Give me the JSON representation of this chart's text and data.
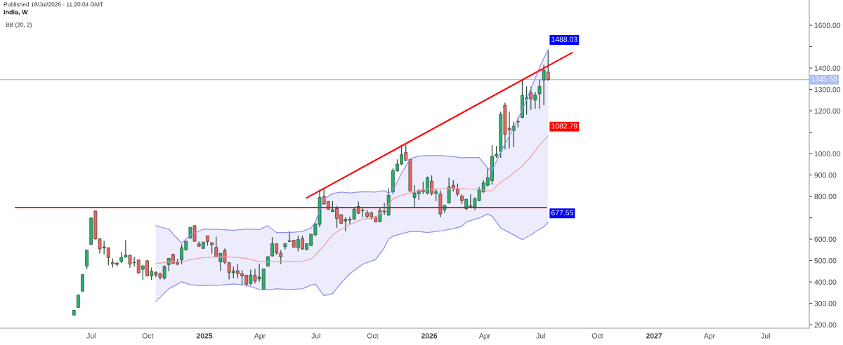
{
  "chart_data": {
    "type": "candlestick",
    "title": "India, W",
    "subtitle": "Published 18/Jul/2026 - 11:20:04 GMT",
    "annotations": [
      "BB (20, 2)"
    ],
    "x": [
      "2024-06-03",
      "2024-06-10",
      "2024-06-17",
      "2024-06-24",
      "2024-07-01",
      "2024-07-08",
      "2024-07-15",
      "2024-07-22",
      "2024-07-29",
      "2024-08-05",
      "2024-08-12",
      "2024-08-19",
      "2024-08-26",
      "2024-09-02",
      "2024-09-09",
      "2024-09-16",
      "2024-09-23",
      "2024-09-30",
      "2024-10-07",
      "2024-10-14",
      "2024-10-21",
      "2024-10-28",
      "2024-11-04",
      "2024-11-11",
      "2024-11-18",
      "2024-11-25",
      "2024-12-02",
      "2024-12-09",
      "2024-12-16",
      "2024-12-23",
      "2024-12-30",
      "2025-01-06",
      "2025-01-13",
      "2025-01-20",
      "2025-01-27",
      "2025-02-03",
      "2025-02-10",
      "2025-02-17",
      "2025-02-24",
      "2025-03-03",
      "2025-03-10",
      "2025-03-17",
      "2025-03-24",
      "2025-03-31",
      "2025-04-07",
      "2025-04-14",
      "2025-04-21",
      "2025-04-28",
      "2025-05-05",
      "2025-05-12",
      "2025-05-19",
      "2025-05-26",
      "2025-06-02",
      "2025-06-09",
      "2025-06-16",
      "2025-06-23",
      "2025-06-30",
      "2025-07-07",
      "2025-07-14",
      "2025-07-21",
      "2025-07-28",
      "2025-08-04",
      "2025-08-11",
      "2025-08-18",
      "2025-08-25",
      "2025-09-01",
      "2025-09-08",
      "2025-09-15",
      "2025-09-22",
      "2025-09-29",
      "2025-10-06",
      "2025-10-13",
      "2025-10-20",
      "2025-10-27",
      "2025-11-03",
      "2025-11-10",
      "2025-11-17",
      "2025-11-24",
      "2025-12-01",
      "2025-12-08",
      "2025-12-15",
      "2025-12-22",
      "2025-12-29",
      "2026-01-05",
      "2026-01-12",
      "2026-01-19",
      "2026-01-26",
      "2026-02-02",
      "2026-02-09",
      "2026-02-16",
      "2026-02-23",
      "2026-03-02",
      "2026-03-09",
      "2026-03-16",
      "2026-03-23",
      "2026-03-30",
      "2026-04-06",
      "2026-04-13",
      "2026-04-20",
      "2026-04-27",
      "2026-05-04",
      "2026-05-11",
      "2026-05-18",
      "2026-05-25",
      "2026-06-01",
      "2026-06-08",
      "2026-06-15",
      "2026-06-22",
      "2026-06-29",
      "2026-07-06",
      "2026-07-13"
    ],
    "ohlc": [
      [
        245,
        270,
        243,
        268
      ],
      [
        281,
        341,
        279,
        339
      ],
      [
        357,
        436,
        355,
        434
      ],
      [
        474,
        551,
        459,
        549
      ],
      [
        576,
        701,
        574,
        699
      ],
      [
        732,
        734,
        598,
        601
      ],
      [
        602,
        602,
        532,
        554
      ],
      [
        559,
        592,
        529,
        564
      ],
      [
        560,
        560,
        478,
        513
      ],
      [
        491,
        510,
        467,
        484
      ],
      [
        482,
        494,
        472,
        488
      ],
      [
        496,
        540,
        488,
        514
      ],
      [
        516,
        595,
        514,
        526
      ],
      [
        525,
        527,
        467,
        483
      ],
      [
        490,
        516,
        472,
        491
      ],
      [
        503,
        505,
        439,
        442
      ],
      [
        459,
        476,
        409,
        476
      ],
      [
        499,
        503,
        425,
        428
      ],
      [
        428,
        467,
        410,
        450
      ],
      [
        444,
        450,
        423,
        433
      ],
      [
        437,
        444,
        412,
        422
      ],
      [
        417,
        478,
        412,
        472
      ],
      [
        481,
        510,
        450,
        510
      ],
      [
        529,
        532,
        483,
        488
      ],
      [
        492,
        507,
        478,
        483
      ],
      [
        503,
        576,
        483,
        560
      ],
      [
        551,
        592,
        546,
        590
      ],
      [
        605,
        658,
        603,
        655
      ],
      [
        663,
        666,
        590,
        590
      ],
      [
        578,
        590,
        565,
        567
      ],
      [
        557,
        587,
        554,
        587
      ],
      [
        616,
        616,
        570,
        589
      ],
      [
        584,
        584,
        532,
        574
      ],
      [
        562,
        612,
        518,
        518
      ],
      [
        494,
        534,
        452,
        534
      ],
      [
        546,
        557,
        483,
        492
      ],
      [
        491,
        491,
        412,
        445
      ],
      [
        444,
        472,
        417,
        452
      ],
      [
        452,
        483,
        417,
        439
      ],
      [
        439,
        456,
        383,
        428
      ],
      [
        432,
        432,
        379,
        390
      ],
      [
        393,
        458,
        385,
        432
      ],
      [
        431,
        461,
        393,
        404
      ],
      [
        414,
        485,
        401,
        423
      ],
      [
        365,
        461,
        363,
        461
      ],
      [
        474,
        521,
        472,
        518
      ],
      [
        521,
        609,
        521,
        579
      ],
      [
        578,
        581,
        527,
        536
      ],
      [
        534,
        549,
        483,
        518
      ],
      [
        565,
        581,
        551,
        579
      ],
      [
        589,
        636,
        587,
        592
      ],
      [
        595,
        595,
        560,
        562
      ],
      [
        560,
        616,
        543,
        598
      ],
      [
        603,
        616,
        551,
        554
      ],
      [
        551,
        579,
        551,
        579
      ],
      [
        570,
        625,
        570,
        623
      ],
      [
        620,
        674,
        616,
        672
      ],
      [
        669,
        831,
        656,
        795
      ],
      [
        800,
        835,
        762,
        765
      ],
      [
        776,
        778,
        737,
        740
      ],
      [
        729,
        778,
        729,
        738
      ],
      [
        743,
        756,
        652,
        696
      ],
      [
        715,
        715,
        671,
        674
      ],
      [
        685,
        702,
        636,
        693
      ],
      [
        689,
        704,
        667,
        693
      ],
      [
        693,
        745,
        691,
        740
      ],
      [
        753,
        776,
        718,
        721
      ],
      [
        735,
        745,
        702,
        734
      ],
      [
        723,
        737,
        696,
        707
      ],
      [
        723,
        729,
        691,
        704
      ],
      [
        704,
        707,
        680,
        680
      ],
      [
        682,
        748,
        680,
        734
      ],
      [
        731,
        769,
        713,
        727
      ],
      [
        713,
        838,
        707,
        805
      ],
      [
        822,
        931,
        811,
        920
      ],
      [
        920,
        973,
        915,
        951
      ],
      [
        951,
        1040,
        948,
        995
      ],
      [
        1005,
        1040,
        966,
        969
      ],
      [
        973,
        975,
        824,
        824
      ],
      [
        795,
        852,
        745,
        816
      ],
      [
        813,
        833,
        784,
        827
      ],
      [
        831,
        868,
        811,
        822
      ],
      [
        816,
        893,
        809,
        887
      ],
      [
        871,
        898,
        805,
        813
      ],
      [
        814,
        835,
        778,
        822
      ],
      [
        811,
        827,
        702,
        718
      ],
      [
        737,
        758,
        723,
        758
      ],
      [
        769,
        887,
        767,
        844
      ],
      [
        852,
        876,
        822,
        835
      ],
      [
        833,
        860,
        800,
        811
      ],
      [
        802,
        809,
        765,
        780
      ],
      [
        743,
        787,
        734,
        787
      ],
      [
        756,
        809,
        748,
        751
      ],
      [
        751,
        795,
        737,
        789
      ],
      [
        780,
        844,
        778,
        831
      ],
      [
        822,
        876,
        816,
        863
      ],
      [
        852,
        931,
        846,
        887
      ],
      [
        874,
        1040,
        855,
        988
      ],
      [
        988,
        1035,
        980,
        997
      ],
      [
        1010,
        1196,
        980,
        1183
      ],
      [
        1226,
        1239,
        1019,
        1090
      ],
      [
        1119,
        1196,
        1024,
        1111
      ],
      [
        1108,
        1150,
        1030,
        1128
      ],
      [
        1150,
        1169,
        1122,
        1148
      ],
      [
        1169,
        1346,
        1166,
        1272
      ],
      [
        1255,
        1314,
        1182,
        1262
      ],
      [
        1285,
        1314,
        1204,
        1256
      ],
      [
        1250,
        1288,
        1210,
        1274
      ],
      [
        1279,
        1346,
        1210,
        1314
      ],
      [
        1344,
        1415,
        1226,
        1390
      ],
      [
        1381,
        1483,
        1341,
        1345.5
      ]
    ],
    "colors": [
      "#22b86a",
      "#22b86a",
      "#22b86a",
      "#22b86a",
      "#22b86a",
      "#f0665c",
      "#f0665c",
      "#22b86a",
      "#f0665c",
      "#f0665c",
      "#22b86a",
      "#22b86a",
      "#22b86a",
      "#f0665c",
      "#22b86a",
      "#f0665c",
      "#22b86a",
      "#f0665c",
      "#22b86a",
      "#f0665c",
      "#f0665c",
      "#22b86a",
      "#22b86a",
      "#f0665c",
      "#f0665c",
      "#22b86a",
      "#22b86a",
      "#22b86a",
      "#f0665c",
      "#f0665c",
      "#22b86a",
      "#f0665c",
      "#f0665c",
      "#f0665c",
      "#22b86a",
      "#f0665c",
      "#f0665c",
      "#22b86a",
      "#f0665c",
      "#f0665c",
      "#f0665c",
      "#22b86a",
      "#f0665c",
      "#22b86a",
      "#22b86a",
      "#22b86a",
      "#22b86a",
      "#f0665c",
      "#f0665c",
      "#22b86a",
      "#22b86a",
      "#f0665c",
      "#22b86a",
      "#f0665c",
      "#22b86a",
      "#22b86a",
      "#22b86a",
      "#22b86a",
      "#f0665c",
      "#f0665c",
      "#22b86a",
      "#f0665c",
      "#f0665c",
      "#22b86a",
      "#22b86a",
      "#22b86a",
      "#f0665c",
      "#f0665c",
      "#f0665c",
      "#f0665c",
      "#f0665c",
      "#22b86a",
      "#f0665c",
      "#22b86a",
      "#22b86a",
      "#22b86a",
      "#22b86a",
      "#f0665c",
      "#f0665c",
      "#22b86a",
      "#22b86a",
      "#f0665c",
      "#22b86a",
      "#f0665c",
      "#22b86a",
      "#f0665c",
      "#22b86a",
      "#22b86a",
      "#f0665c",
      "#f0665c",
      "#f0665c",
      "#22b86a",
      "#f0665c",
      "#22b86a",
      "#22b86a",
      "#22b86a",
      "#22b86a",
      "#22b86a",
      "#22b86a",
      "#22b86a",
      "#f0665c",
      "#f0665c",
      "#22b86a",
      "#f0665c",
      "#22b86a",
      "#22b86a",
      "#f0665c",
      "#22b86a",
      "#22b86a",
      "#22b86a",
      "#f0665c"
    ],
    "series": [
      {
        "type": "line",
        "color": "#f2a0a0",
        "x": [
          "2024-10-14",
          "2024-11-04",
          "2024-11-25",
          "2024-12-09",
          "2024-12-30",
          "2025-01-27",
          "2025-02-17",
          "2025-03-10",
          "2025-03-31",
          "2025-04-14",
          "2025-04-28",
          "2025-05-19",
          "2025-06-09",
          "2025-06-23",
          "2025-06-30",
          "2025-07-14",
          "2025-07-28",
          "2025-08-11",
          "2025-08-25",
          "2025-09-15",
          "2025-10-06",
          "2025-10-20",
          "2025-10-27",
          "2025-11-03",
          "2025-11-17",
          "2025-12-01",
          "2025-12-15",
          "2025-12-29",
          "2026-01-19",
          "2026-02-09",
          "2026-02-23",
          "2026-03-02",
          "2026-03-23",
          "2026-04-06",
          "2026-04-13",
          "2026-04-27",
          "2026-05-11",
          "2026-05-25",
          "2026-06-01",
          "2026-06-15",
          "2026-06-29",
          "2026-07-06",
          "2026-07-13"
        ],
        "values": [
          486,
          493,
          493,
          505,
          514,
          518,
          516,
          510,
          496,
          494,
          494,
          496,
          497,
          508,
          525,
          570,
          620,
          647,
          669,
          693,
          702,
          740,
          760,
          789,
          805,
          816,
          827,
          833,
          835,
          837,
          837,
          835,
          833,
          825,
          827,
          866,
          893,
          926,
          942,
          986,
          1040,
          1062,
          1082.79
        ],
        "value_labels": [
          null,
          null,
          null,
          null,
          null,
          null,
          null,
          null,
          null,
          null,
          null,
          null,
          null,
          null,
          null,
          null,
          null,
          null,
          null,
          null,
          null,
          null,
          null,
          null,
          null,
          null,
          null,
          null,
          null,
          null,
          null,
          null,
          null,
          null,
          null,
          null,
          null,
          null,
          null,
          null,
          null,
          null,
          "1082.79"
        ]
      },
      {
        "type": "line",
        "color": "#8f8ff2",
        "x": [
          "2024-10-14",
          "2024-11-04",
          "2024-11-25",
          "2024-12-09",
          "2024-12-30",
          "2025-01-27",
          "2025-02-17",
          "2025-03-10",
          "2025-03-31",
          "2025-04-14",
          "2025-04-28",
          "2025-05-19",
          "2025-06-09",
          "2025-06-23",
          "2025-06-30",
          "2025-07-14",
          "2025-07-28",
          "2025-08-11",
          "2025-08-25",
          "2025-09-15",
          "2025-10-06",
          "2025-10-20",
          "2025-10-27",
          "2025-11-03",
          "2025-11-17",
          "2025-12-01",
          "2025-12-15",
          "2025-12-29",
          "2026-01-19",
          "2026-02-09",
          "2026-02-23",
          "2026-03-02",
          "2026-03-23",
          "2026-04-06",
          "2026-04-13",
          "2026-04-27",
          "2026-05-11",
          "2026-05-25",
          "2026-06-01",
          "2026-06-15",
          "2026-06-29",
          "2026-07-06",
          "2026-07-13"
        ],
        "values": [
          663,
          647,
          581,
          620,
          647,
          645,
          642,
          647,
          645,
          663,
          631,
          631,
          636,
          652,
          680,
          789,
          813,
          820,
          816,
          822,
          820,
          827,
          816,
          827,
          909,
          975,
          988,
          991,
          991,
          986,
          980,
          982,
          982,
          931,
          920,
          1008,
          1084,
          1161,
          1204,
          1303,
          1401,
          1445,
          1488.03
        ],
        "value_labels": [
          null,
          null,
          null,
          null,
          null,
          null,
          null,
          null,
          null,
          null,
          null,
          null,
          null,
          null,
          null,
          null,
          null,
          null,
          null,
          null,
          null,
          null,
          null,
          null,
          null,
          null,
          null,
          null,
          null,
          null,
          null,
          null,
          null,
          null,
          null,
          null,
          null,
          null,
          null,
          null,
          null,
          null,
          "1488.03"
        ]
      },
      {
        "type": "line",
        "color": "#8f8ff2",
        "x": [
          "2024-10-14",
          "2024-11-04",
          "2024-11-25",
          "2024-12-09",
          "2024-12-30",
          "2025-01-27",
          "2025-02-17",
          "2025-03-10",
          "2025-03-31",
          "2025-04-14",
          "2025-04-28",
          "2025-05-19",
          "2025-06-09",
          "2025-06-23",
          "2025-06-30",
          "2025-07-14",
          "2025-07-28",
          "2025-08-11",
          "2025-08-25",
          "2025-09-15",
          "2025-10-06",
          "2025-10-20",
          "2025-10-27",
          "2025-11-03",
          "2025-11-17",
          "2025-12-01",
          "2025-12-15",
          "2025-12-29",
          "2026-01-19",
          "2026-02-09",
          "2026-02-23",
          "2026-03-02",
          "2026-03-23",
          "2026-04-06",
          "2026-04-13",
          "2026-04-27",
          "2026-05-11",
          "2026-05-25",
          "2026-06-01",
          "2026-06-15",
          "2026-06-29",
          "2026-07-06",
          "2026-07-13"
        ],
        "values": [
          308,
          368,
          401,
          387,
          383,
          385,
          391,
          385,
          365,
          363,
          368,
          365,
          368,
          385,
          390,
          336,
          346,
          396,
          439,
          483,
          505,
          560,
          600,
          614,
          625,
          636,
          636,
          631,
          638,
          649,
          660,
          680,
          699,
          718,
          707,
          652,
          631,
          609,
          598,
          620,
          647,
          658,
          677.55
        ],
        "value_labels": [
          null,
          null,
          null,
          null,
          null,
          null,
          null,
          null,
          null,
          null,
          null,
          null,
          null,
          null,
          null,
          null,
          null,
          null,
          null,
          null,
          null,
          null,
          null,
          null,
          null,
          null,
          null,
          null,
          null,
          null,
          null,
          null,
          null,
          null,
          null,
          null,
          null,
          null,
          null,
          null,
          null,
          null,
          "677.55"
        ]
      },
      {
        "type": "line",
        "color": "#ff0000",
        "x": [
          "2024-02-29",
          "2026-07-10"
        ],
        "values": [
          748,
          748
        ]
      },
      {
        "type": "line",
        "color": "#ff0000",
        "x": [
          "2025-06-16",
          "2026-08-21"
        ],
        "values": [
          793,
          1472
        ]
      }
    ],
    "ref_lines": [
      {
        "axis": "y",
        "value": 1345.5,
        "label": "1345.50",
        "color": "#aabdf0"
      }
    ],
    "xlim": [
      "2024-02-04",
      "2027-09-10"
    ],
    "ylim": [
      184,
      1718
    ],
    "xticks": [
      {
        "value": "2024-07-01",
        "label": "Jul"
      },
      {
        "value": "2024-10-01",
        "label": "Oct"
      },
      {
        "value": "2025-01-01",
        "label": "2025"
      },
      {
        "value": "2025-04-01",
        "label": "Apr"
      },
      {
        "value": "2025-07-01",
        "label": "Jul"
      },
      {
        "value": "2025-10-01",
        "label": "Oct"
      },
      {
        "value": "2026-01-01",
        "label": "2026"
      },
      {
        "value": "2026-04-01",
        "label": "Apr"
      },
      {
        "value": "2026-07-01",
        "label": "Jul"
      },
      {
        "value": "2026-10-01",
        "label": "Oct"
      },
      {
        "value": "2027-01-01",
        "label": "2027"
      },
      {
        "value": "2027-04-01",
        "label": "Apr"
      },
      {
        "value": "2027-07-01",
        "label": "Jul"
      }
    ],
    "yticks": [
      {
        "value": 200,
        "label": "200.00"
      },
      {
        "value": 300,
        "label": "300.00"
      },
      {
        "value": 400,
        "label": "400.00"
      },
      {
        "value": 500,
        "label": "500.00"
      },
      {
        "value": 600,
        "label": "600.00"
      },
      {
        "value": 700,
        "label": null
      },
      {
        "value": 800,
        "label": "800.00"
      },
      {
        "value": 900,
        "label": "900.00"
      },
      {
        "value": 1000,
        "label": "1000.00"
      },
      {
        "value": 1100,
        "label": null
      },
      {
        "value": 1200,
        "label": "1200.00"
      },
      {
        "value": 1300,
        "label": "1300.00"
      },
      {
        "value": 1400,
        "label": "1400.00"
      },
      {
        "value": 1500,
        "label": null
      },
      {
        "value": 1600,
        "label": "1600.00"
      }
    ],
    "grid": false,
    "legend": false
  }
}
